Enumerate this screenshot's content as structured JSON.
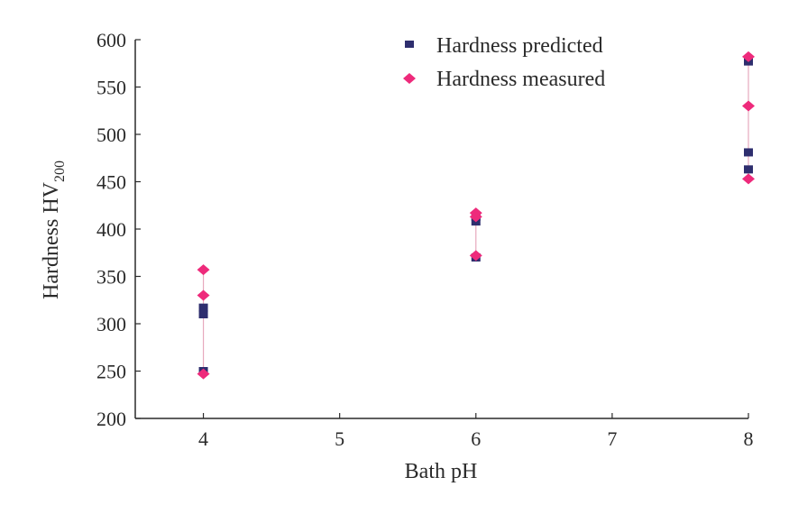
{
  "chart_data": {
    "type": "scatter",
    "title": "",
    "xlabel": "Bath pH",
    "ylabel": "Hardness HV",
    "ylabel_subscript": "200",
    "xlim": [
      3.5,
      8
    ],
    "ylim": [
      200,
      600
    ],
    "xticks": [
      4,
      5,
      6,
      7,
      8
    ],
    "yticks": [
      200,
      250,
      300,
      350,
      400,
      450,
      500,
      550,
      600
    ],
    "grid": false,
    "legend_position": "top-right",
    "series": [
      {
        "name": "Hardness predicted",
        "marker": "square",
        "color": "#2e2e6e",
        "x": [
          4,
          4,
          4,
          6,
          6,
          6,
          8,
          8,
          8
        ],
        "y": [
          250,
          310,
          317,
          370,
          408,
          413,
          463,
          481,
          577
        ]
      },
      {
        "name": "Hardness measured",
        "marker": "diamond",
        "color": "#ee2a7b",
        "x": [
          4,
          4,
          4,
          6,
          6,
          6,
          8,
          8,
          8
        ],
        "y": [
          247,
          330,
          357,
          372,
          413,
          417,
          453,
          530,
          582
        ]
      }
    ]
  },
  "legend": {
    "predicted_label": "Hardness predicted",
    "measured_label": "Hardness measured"
  }
}
